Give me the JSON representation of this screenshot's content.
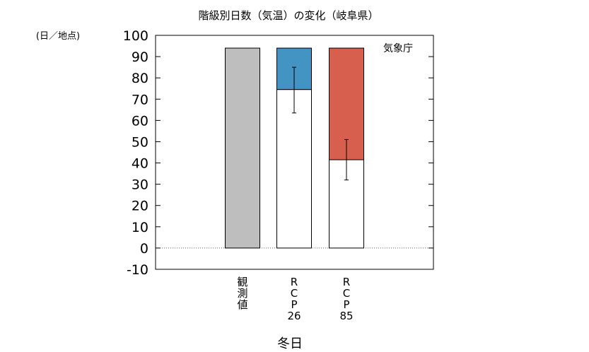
{
  "chart_data": {
    "type": "bar",
    "title": "階級別日数（気温）の変化（岐阜県）",
    "unit_label": "(日／地点)",
    "credit": "気象庁",
    "xlabel": "冬日",
    "ylim": [
      -10,
      100
    ],
    "yticks": [
      -10,
      0,
      10,
      20,
      30,
      40,
      50,
      60,
      70,
      80,
      90,
      100
    ],
    "categories": [
      [
        "観",
        "測",
        "値"
      ],
      [
        "R",
        "C",
        "P",
        "26"
      ],
      [
        "R",
        "C",
        "P",
        "85"
      ]
    ],
    "bars": [
      {
        "total": 94,
        "future": null,
        "change_color": null,
        "obs_color": "#bebebe",
        "error": null
      },
      {
        "total": 94,
        "future": 74.5,
        "change_color": "#4393c3",
        "obs_color": null,
        "error": [
          63.5,
          85
        ]
      },
      {
        "total": 94,
        "future": 41.5,
        "change_color": "#d6604d",
        "obs_color": null,
        "error": [
          32,
          51
        ]
      }
    ],
    "zero_line": "dotted",
    "grid": false
  }
}
